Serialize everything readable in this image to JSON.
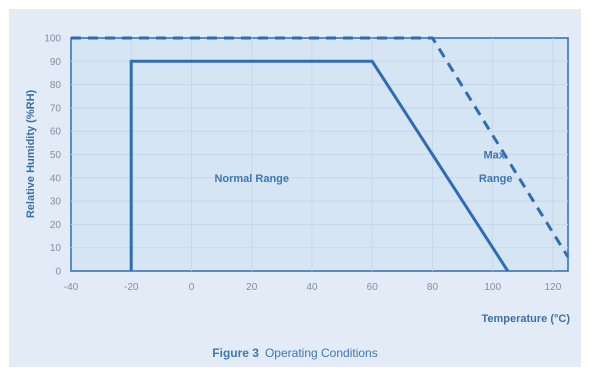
{
  "chart_data": {
    "type": "line",
    "xlabel": "Temperature (°C)",
    "ylabel": "Relative Humidity (%RH)",
    "xlim": [
      -40,
      125
    ],
    "ylim": [
      0,
      100
    ],
    "x_ticks": [
      -40,
      -20,
      0,
      20,
      40,
      60,
      80,
      100,
      120
    ],
    "y_ticks": [
      0,
      10,
      20,
      30,
      40,
      50,
      60,
      70,
      80,
      90,
      100
    ],
    "grid": true,
    "series": [
      {
        "style": "solid",
        "color": "#2e6db4",
        "points": [
          [
            -20,
            0
          ],
          [
            -20,
            90
          ],
          [
            60,
            90
          ],
          [
            105,
            0
          ]
        ]
      },
      {
        "style": "dashed",
        "color": "#2e6db4",
        "points": [
          [
            -40,
            100
          ],
          [
            80,
            100
          ],
          [
            125,
            6
          ]
        ]
      }
    ],
    "annotations": [
      {
        "text": "Normal Range",
        "x": 20,
        "y": 40
      },
      {
        "text": "Max.",
        "x": 101,
        "y": 50
      },
      {
        "text": "Range",
        "x": 101,
        "y": 40
      }
    ]
  },
  "caption": {
    "label": "Figure 3",
    "text": "Operating Conditions"
  },
  "colors": {
    "background": "#e3ecf6",
    "plot_area": "#d6e5f3",
    "grid": "#c5d8eb",
    "line": "#2e6db4"
  }
}
